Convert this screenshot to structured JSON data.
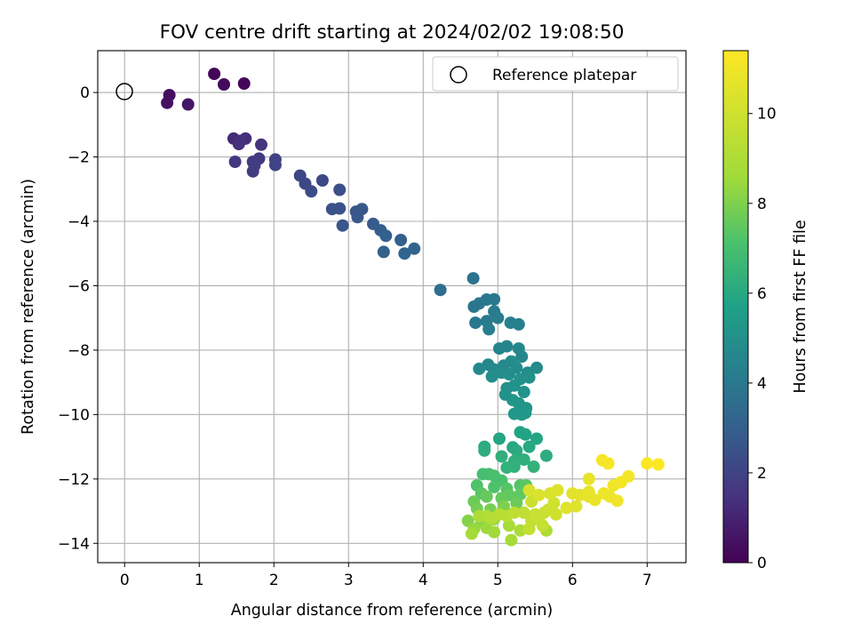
{
  "chart_data": {
    "type": "scatter",
    "title": "FOV centre drift starting at 2024/02/02 19:08:50",
    "xlabel": "Angular distance from reference (arcmin)",
    "ylabel": "Rotation from reference (arcmin)",
    "xlim": [
      -0.36,
      7.52
    ],
    "ylim": [
      -14.6,
      1.3
    ],
    "xticks": [
      "0",
      "1",
      "2",
      "3",
      "4",
      "5",
      "6",
      "7"
    ],
    "yticks": [
      "0",
      "−2",
      "−4",
      "−6",
      "−8",
      "−10",
      "−12",
      "−14"
    ],
    "grid": true,
    "legend": {
      "position": "top-right",
      "entries": [
        "Reference platepar"
      ]
    },
    "colorbar": {
      "label": "Hours from first FF file",
      "colormap": "viridis",
      "range": [
        0,
        11.4
      ],
      "ticks": [
        "0",
        "2",
        "4",
        "6",
        "8",
        "10"
      ]
    },
    "reference_point": {
      "x": 0,
      "y": 0
    },
    "series": [
      {
        "points": [
          [
            1.2,
            0.58,
            0.1
          ],
          [
            1.6,
            0.28,
            0.2
          ],
          [
            1.33,
            0.25,
            0.3
          ],
          [
            0.6,
            -0.08,
            0.4
          ],
          [
            0.57,
            -0.32,
            0.5
          ],
          [
            0.85,
            -0.37,
            0.6
          ],
          [
            1.46,
            -1.43,
            1.2
          ],
          [
            1.62,
            -1.43,
            1.3
          ],
          [
            1.53,
            -1.6,
            1.4
          ],
          [
            1.83,
            -1.62,
            1.5
          ],
          [
            1.55,
            -1.5,
            1.4
          ],
          [
            1.48,
            -2.15,
            1.6
          ],
          [
            1.72,
            -2.15,
            1.7
          ],
          [
            1.8,
            -2.05,
            1.7
          ],
          [
            1.74,
            -2.27,
            1.8
          ],
          [
            1.72,
            -2.45,
            1.8
          ],
          [
            2.02,
            -2.08,
            1.9
          ],
          [
            2.02,
            -2.25,
            2.0
          ],
          [
            2.35,
            -2.58,
            2.1
          ],
          [
            2.42,
            -2.83,
            2.2
          ],
          [
            2.65,
            -2.73,
            2.2
          ],
          [
            2.5,
            -3.07,
            2.3
          ],
          [
            2.88,
            -3.02,
            2.4
          ],
          [
            2.78,
            -3.62,
            2.5
          ],
          [
            2.88,
            -3.6,
            2.5
          ],
          [
            2.92,
            -4.13,
            2.6
          ],
          [
            3.1,
            -3.7,
            2.6
          ],
          [
            3.18,
            -3.62,
            2.7
          ],
          [
            3.12,
            -3.87,
            2.7
          ],
          [
            3.33,
            -4.08,
            2.8
          ],
          [
            3.43,
            -4.28,
            2.9
          ],
          [
            3.5,
            -4.45,
            3.0
          ],
          [
            3.7,
            -4.58,
            3.0
          ],
          [
            3.47,
            -4.95,
            3.1
          ],
          [
            3.75,
            -5.0,
            3.2
          ],
          [
            3.88,
            -4.85,
            3.2
          ],
          [
            4.23,
            -6.13,
            3.6
          ],
          [
            4.67,
            -5.77,
            3.8
          ],
          [
            4.68,
            -6.65,
            3.9
          ],
          [
            4.75,
            -6.55,
            3.9
          ],
          [
            4.85,
            -6.43,
            4.0
          ],
          [
            4.95,
            -6.42,
            4.0
          ],
          [
            4.7,
            -7.15,
            4.0
          ],
          [
            4.85,
            -7.1,
            4.1
          ],
          [
            4.95,
            -6.8,
            4.1
          ],
          [
            4.88,
            -7.35,
            4.2
          ],
          [
            5.0,
            -7.0,
            4.2
          ],
          [
            5.17,
            -7.15,
            4.3
          ],
          [
            5.28,
            -7.2,
            4.3
          ],
          [
            5.02,
            -7.95,
            4.5
          ],
          [
            5.12,
            -7.88,
            4.5
          ],
          [
            5.28,
            -7.95,
            4.6
          ],
          [
            5.32,
            -8.2,
            4.6
          ],
          [
            4.87,
            -8.45,
            4.6
          ],
          [
            4.95,
            -8.6,
            4.7
          ],
          [
            4.75,
            -8.58,
            4.7
          ],
          [
            5.08,
            -8.48,
            4.7
          ],
          [
            5.18,
            -8.35,
            4.8
          ],
          [
            5.25,
            -8.55,
            4.8
          ],
          [
            5.4,
            -8.7,
            4.8
          ],
          [
            5.52,
            -8.55,
            4.8
          ],
          [
            5.05,
            -8.7,
            4.9
          ],
          [
            4.92,
            -8.82,
            4.9
          ],
          [
            5.15,
            -8.75,
            4.9
          ],
          [
            5.3,
            -8.9,
            5.0
          ],
          [
            5.42,
            -8.85,
            5.0
          ],
          [
            5.12,
            -9.18,
            5.0
          ],
          [
            5.22,
            -9.1,
            5.1
          ],
          [
            5.1,
            -9.38,
            5.1
          ],
          [
            5.35,
            -9.3,
            5.1
          ],
          [
            5.28,
            -9.65,
            5.2
          ],
          [
            5.2,
            -9.55,
            5.2
          ],
          [
            5.38,
            -9.8,
            5.2
          ],
          [
            5.22,
            -9.98,
            5.3
          ],
          [
            5.32,
            -10.0,
            5.3
          ],
          [
            5.37,
            -9.95,
            5.3
          ],
          [
            5.3,
            -10.55,
            5.8
          ],
          [
            5.37,
            -10.62,
            5.8
          ],
          [
            5.52,
            -10.75,
            5.9
          ],
          [
            5.02,
            -10.75,
            5.9
          ],
          [
            5.42,
            -11.0,
            6.0
          ],
          [
            5.2,
            -11.02,
            6.0
          ],
          [
            5.25,
            -11.12,
            6.1
          ],
          [
            4.82,
            -11.0,
            6.1
          ],
          [
            4.82,
            -11.12,
            6.2
          ],
          [
            5.65,
            -11.28,
            6.2
          ],
          [
            5.05,
            -11.3,
            6.3
          ],
          [
            5.35,
            -11.4,
            6.3
          ],
          [
            5.22,
            -11.45,
            6.3
          ],
          [
            5.48,
            -11.62,
            6.4
          ],
          [
            5.12,
            -11.65,
            6.4
          ],
          [
            5.22,
            -11.62,
            6.4
          ],
          [
            4.8,
            -11.85,
            7.0
          ],
          [
            4.88,
            -11.85,
            7.0
          ],
          [
            4.95,
            -11.9,
            7.1
          ],
          [
            5.05,
            -12.05,
            7.1
          ],
          [
            4.72,
            -12.2,
            7.2
          ],
          [
            4.95,
            -12.25,
            7.2
          ],
          [
            5.12,
            -12.3,
            7.3
          ],
          [
            5.3,
            -12.2,
            7.3
          ],
          [
            5.38,
            -12.2,
            7.4
          ],
          [
            4.78,
            -12.45,
            7.4
          ],
          [
            5.15,
            -12.5,
            7.5
          ],
          [
            5.3,
            -12.48,
            7.5
          ],
          [
            4.85,
            -12.55,
            7.6
          ],
          [
            5.05,
            -12.6,
            7.6
          ],
          [
            4.68,
            -12.7,
            7.7
          ],
          [
            5.25,
            -12.75,
            7.7
          ],
          [
            4.72,
            -12.92,
            7.8
          ],
          [
            4.9,
            -12.95,
            7.9
          ],
          [
            5.08,
            -12.85,
            8.0
          ],
          [
            4.6,
            -13.3,
            8.1
          ],
          [
            4.78,
            -13.35,
            8.2
          ],
          [
            4.95,
            -13.25,
            8.3
          ],
          [
            4.68,
            -13.55,
            8.4
          ],
          [
            4.85,
            -13.52,
            8.5
          ],
          [
            4.95,
            -13.65,
            8.6
          ],
          [
            4.65,
            -13.7,
            8.7
          ],
          [
            5.15,
            -13.45,
            8.8
          ],
          [
            5.18,
            -13.9,
            8.8
          ],
          [
            5.3,
            -13.6,
            8.9
          ],
          [
            5.65,
            -13.6,
            9.0
          ],
          [
            4.75,
            -13.15,
            9.0
          ],
          [
            4.85,
            -13.15,
            9.1
          ],
          [
            4.92,
            -13.22,
            9.2
          ],
          [
            5.02,
            -13.1,
            9.3
          ],
          [
            5.12,
            -13.15,
            9.4
          ],
          [
            5.22,
            -13.05,
            9.5
          ],
          [
            5.35,
            -13.05,
            9.5
          ],
          [
            5.45,
            -13.3,
            9.6
          ],
          [
            5.55,
            -13.2,
            9.7
          ],
          [
            5.6,
            -13.45,
            9.7
          ],
          [
            5.42,
            -13.55,
            9.6
          ],
          [
            5.5,
            -13.1,
            9.8
          ],
          [
            5.62,
            -13.05,
            9.8
          ],
          [
            5.68,
            -12.95,
            9.9
          ],
          [
            5.75,
            -12.75,
            10.0
          ],
          [
            5.78,
            -13.1,
            10.0
          ],
          [
            5.45,
            -12.7,
            9.9
          ],
          [
            5.42,
            -12.35,
            10.2
          ],
          [
            5.55,
            -12.5,
            10.3
          ],
          [
            5.7,
            -12.45,
            10.3
          ],
          [
            5.8,
            -12.35,
            10.4
          ],
          [
            5.92,
            -12.9,
            10.5
          ],
          [
            6.05,
            -12.85,
            10.5
          ],
          [
            6.1,
            -12.5,
            10.6
          ],
          [
            6.0,
            -12.45,
            10.6
          ],
          [
            6.22,
            -12.4,
            10.7
          ],
          [
            6.22,
            -12.55,
            10.7
          ],
          [
            6.3,
            -12.65,
            10.8
          ],
          [
            6.22,
            -12.0,
            10.8
          ],
          [
            6.42,
            -12.45,
            10.9
          ],
          [
            6.5,
            -12.55,
            10.9
          ],
          [
            6.55,
            -12.2,
            11.0
          ],
          [
            6.6,
            -12.68,
            11.0
          ],
          [
            6.65,
            -12.1,
            11.1
          ],
          [
            6.75,
            -11.92,
            11.1
          ],
          [
            6.4,
            -11.42,
            11.2
          ],
          [
            6.48,
            -11.52,
            11.2
          ],
          [
            7.0,
            -11.52,
            11.3
          ],
          [
            7.15,
            -11.55,
            11.3
          ]
        ]
      }
    ]
  }
}
